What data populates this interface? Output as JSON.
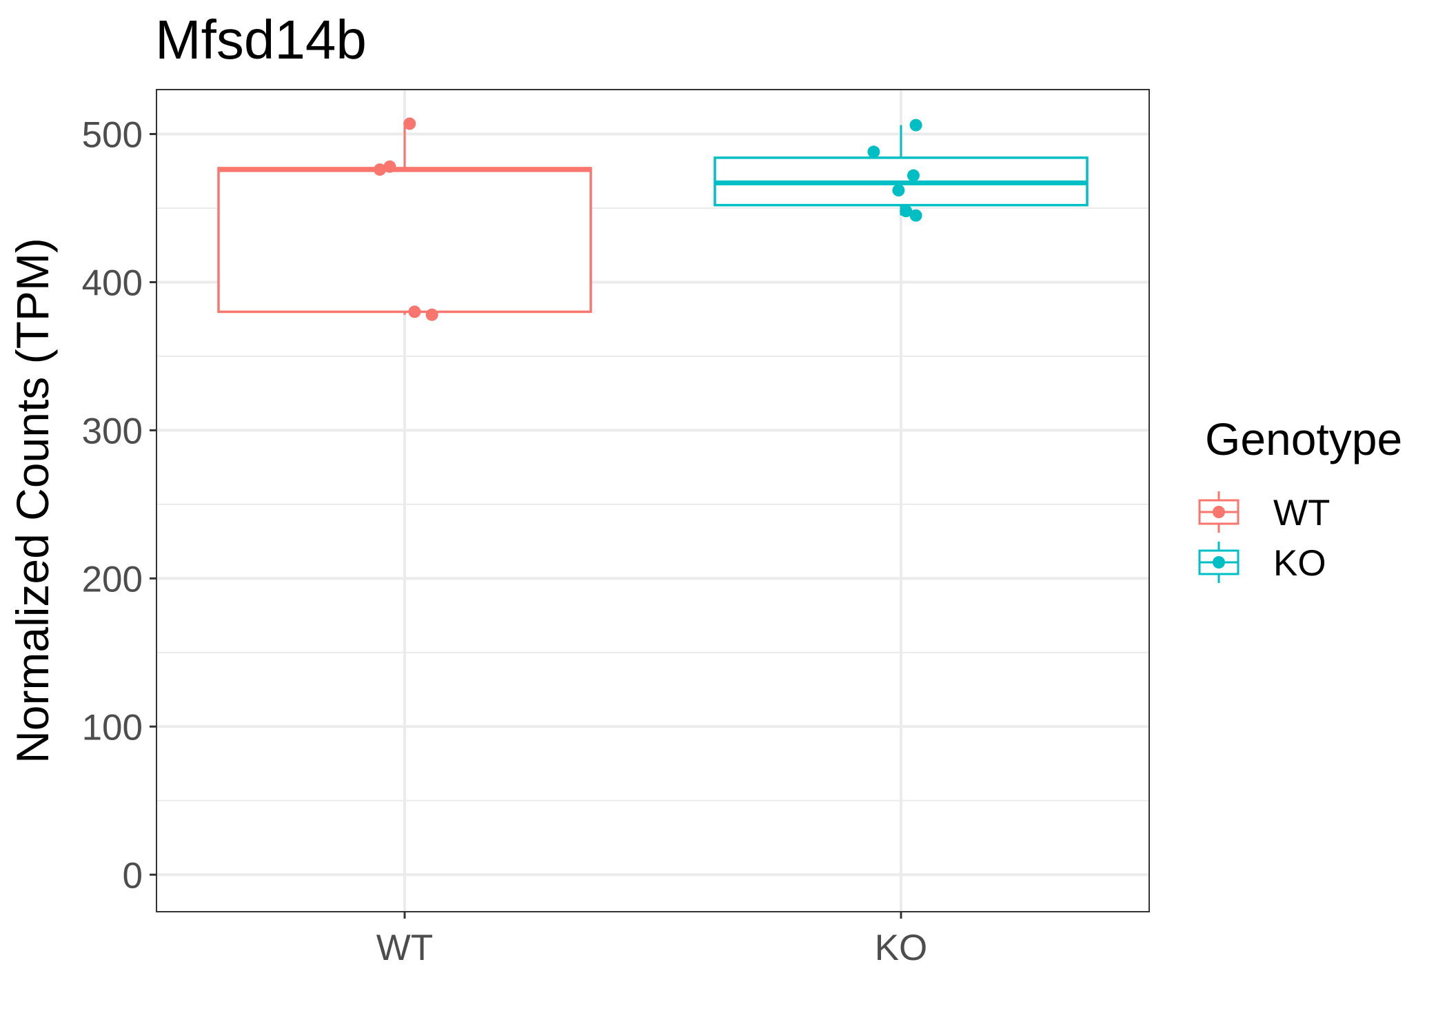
{
  "chart_data": {
    "type": "box",
    "title": "Mfsd14b",
    "xlabel": "",
    "ylabel": "Normalized Counts (TPM)",
    "ylim": [
      -25,
      530
    ],
    "yticks": [
      0,
      100,
      200,
      300,
      400,
      500
    ],
    "categories": [
      "WT",
      "KO"
    ],
    "grid": true,
    "legend": {
      "title": "Genotype",
      "position": "right",
      "entries": [
        "WT",
        "KO"
      ]
    },
    "colors": {
      "WT": "#F8766D",
      "KO": "#00BFC4"
    },
    "series": [
      {
        "name": "WT",
        "box": {
          "min": 378,
          "q1": 380,
          "median": 476,
          "q3": 477,
          "max": 507
        },
        "points": [
          507,
          478,
          476,
          380,
          378
        ]
      },
      {
        "name": "KO",
        "box": {
          "min": 445,
          "q1": 452,
          "median": 467,
          "q3": 484,
          "max": 506
        },
        "points": [
          506,
          488,
          472,
          462,
          448,
          445
        ]
      }
    ]
  }
}
